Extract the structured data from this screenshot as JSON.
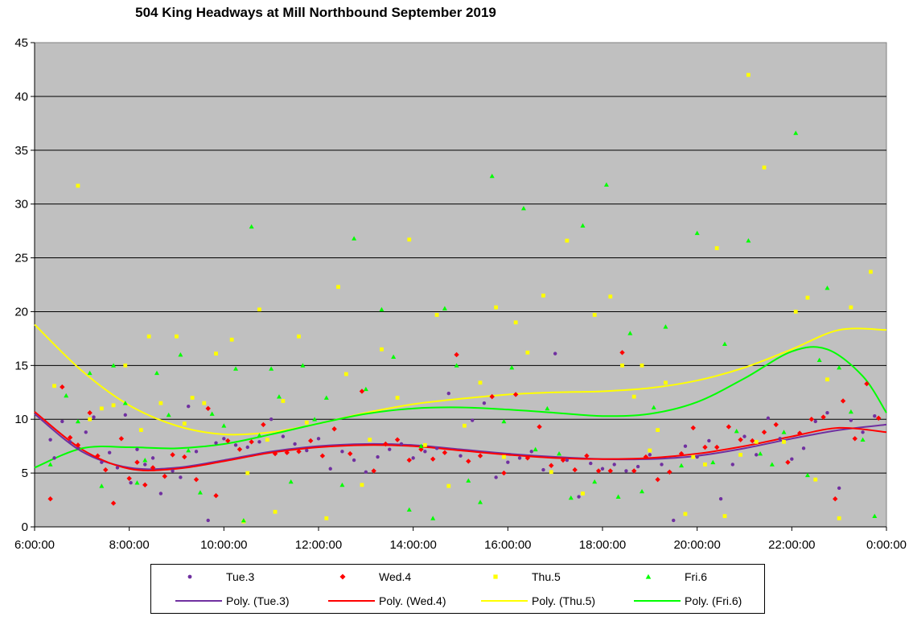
{
  "chart_data": {
    "type": "scatter",
    "title": "504 King Headways at Mill Northbound September 2019",
    "xlabel": "",
    "ylabel": "",
    "xlim": [
      "6:00:00",
      "0:00:00"
    ],
    "ylim": [
      0,
      45
    ],
    "x_ticks": [
      "6:00:00",
      "8:00:00",
      "10:00:00",
      "12:00:00",
      "14:00:00",
      "16:00:00",
      "18:00:00",
      "20:00:00",
      "22:00:00",
      "0:00:00"
    ],
    "y_ticks": [
      "0",
      "5",
      "10",
      "15",
      "20",
      "25",
      "30",
      "35",
      "40",
      "45"
    ],
    "grid": "horizontal",
    "plot_background": "#c0c0c0",
    "legend_position": "bottom",
    "series": [
      {
        "name": "Tue.3",
        "marker": "circle",
        "color": "#7030a0",
        "x": [
          "6:20",
          "6:25",
          "6:35",
          "6:45",
          "6:55",
          "7:05",
          "7:15",
          "7:25",
          "7:35",
          "7:45",
          "7:55",
          "8:02",
          "8:10",
          "8:20",
          "8:30",
          "8:40",
          "8:55",
          "9:05",
          "9:15",
          "9:25",
          "9:40",
          "9:50",
          "10:00",
          "10:15",
          "10:30",
          "10:45",
          "11:00",
          "11:15",
          "11:30",
          "11:45",
          "12:00",
          "12:15",
          "12:30",
          "12:45",
          "13:00",
          "13:15",
          "13:30",
          "13:45",
          "14:00",
          "14:15",
          "14:30",
          "14:45",
          "15:00",
          "15:15",
          "15:30",
          "15:45",
          "16:00",
          "16:15",
          "16:30",
          "16:45",
          "17:00",
          "17:15",
          "17:30",
          "17:45",
          "18:00",
          "18:15",
          "18:30",
          "18:45",
          "19:00",
          "19:15",
          "19:30",
          "19:45",
          "20:00",
          "20:15",
          "20:30",
          "20:45",
          "21:00",
          "21:15",
          "21:30",
          "21:45",
          "22:00",
          "22:15",
          "22:30",
          "22:45",
          "23:00",
          "23:15",
          "23:30",
          "23:45"
        ],
        "y": [
          8.1,
          6.4,
          9.8,
          7.9,
          7.3,
          8.8,
          10.2,
          6.0,
          6.9,
          5.5,
          10.4,
          4.1,
          7.2,
          5.8,
          6.4,
          3.1,
          5.2,
          4.6,
          11.2,
          7.0,
          0.6,
          7.8,
          8.2,
          7.6,
          7.4,
          7.9,
          10.0,
          8.4,
          7.7,
          7.1,
          8.2,
          5.4,
          7.0,
          6.2,
          5.1,
          6.5,
          7.2,
          7.7,
          6.4,
          7.0,
          7.3,
          12.4,
          6.6,
          9.9,
          11.5,
          4.6,
          6.0,
          6.4,
          7.0,
          5.3,
          16.1,
          6.2,
          2.8,
          5.9,
          5.4,
          5.8,
          5.2,
          5.6,
          6.7,
          5.8,
          0.6,
          7.5,
          6.5,
          8.0,
          2.6,
          5.8,
          8.4,
          6.7,
          10.1,
          8.2,
          6.3,
          7.3,
          9.8,
          10.6,
          3.6,
          9.9,
          8.8,
          10.3
        ]
      },
      {
        "name": "Wed.4",
        "marker": "diamond",
        "color": "#ff0000",
        "x": [
          "6:20",
          "6:35",
          "6:45",
          "6:55",
          "7:10",
          "7:20",
          "7:30",
          "7:40",
          "7:50",
          "8:00",
          "8:10",
          "8:20",
          "8:30",
          "8:45",
          "8:55",
          "9:10",
          "9:25",
          "9:40",
          "9:50",
          "10:05",
          "10:20",
          "10:35",
          "10:50",
          "11:05",
          "11:20",
          "11:35",
          "11:50",
          "12:05",
          "12:20",
          "12:40",
          "12:55",
          "13:10",
          "13:25",
          "13:40",
          "13:55",
          "14:10",
          "14:25",
          "14:40",
          "14:55",
          "15:10",
          "15:25",
          "15:40",
          "15:55",
          "16:10",
          "16:25",
          "16:40",
          "16:55",
          "17:10",
          "17:25",
          "17:40",
          "17:55",
          "18:10",
          "18:25",
          "18:40",
          "18:55",
          "19:10",
          "19:25",
          "19:40",
          "19:55",
          "20:10",
          "20:25",
          "20:40",
          "20:55",
          "21:10",
          "21:25",
          "21:40",
          "21:55",
          "22:10",
          "22:25",
          "22:40",
          "22:55",
          "23:05",
          "23:20",
          "23:35",
          "23:50"
        ],
        "y": [
          2.6,
          13.0,
          8.3,
          7.6,
          10.6,
          6.6,
          5.3,
          2.2,
          8.2,
          4.5,
          6.0,
          3.9,
          5.5,
          4.7,
          6.7,
          6.5,
          4.4,
          11.0,
          2.9,
          8.0,
          7.2,
          7.9,
          9.5,
          6.8,
          6.9,
          7.0,
          8.0,
          6.6,
          9.1,
          6.8,
          12.6,
          5.2,
          7.7,
          8.1,
          6.2,
          7.2,
          6.3,
          6.9,
          16.0,
          6.1,
          6.6,
          12.1,
          5.0,
          12.3,
          6.4,
          9.3,
          5.7,
          6.2,
          5.3,
          6.6,
          5.2,
          5.2,
          16.2,
          5.2,
          6.5,
          4.4,
          5.1,
          6.8,
          9.2,
          7.4,
          7.4,
          9.3,
          8.1,
          8.0,
          8.8,
          9.5,
          6.0,
          8.7,
          10.0,
          10.2,
          2.6,
          11.7,
          8.2,
          13.3,
          10.1
        ]
      },
      {
        "name": "Thu.5",
        "marker": "square",
        "color": "#ffff00",
        "x": [
          "6:25",
          "6:55",
          "7:10",
          "7:25",
          "7:40",
          "7:55",
          "8:15",
          "8:25",
          "8:40",
          "9:00",
          "9:10",
          "9:20",
          "9:35",
          "9:50",
          "10:10",
          "10:25",
          "10:30",
          "10:45",
          "10:55",
          "11:05",
          "11:15",
          "11:35",
          "11:45",
          "12:10",
          "12:25",
          "12:35",
          "12:55",
          "13:05",
          "13:20",
          "13:40",
          "13:55",
          "14:15",
          "14:30",
          "14:45",
          "15:05",
          "15:25",
          "15:45",
          "15:55",
          "16:10",
          "16:25",
          "16:45",
          "16:55",
          "17:15",
          "17:35",
          "17:50",
          "18:10",
          "18:25",
          "18:40",
          "18:50",
          "19:00",
          "19:10",
          "19:20",
          "19:45",
          "19:55",
          "20:10",
          "20:25",
          "20:35",
          "20:55",
          "21:05",
          "21:15",
          "21:25",
          "21:50",
          "22:05",
          "22:20",
          "22:30",
          "22:45",
          "23:00",
          "23:15",
          "23:40"
        ],
        "y": [
          13.1,
          31.7,
          10.0,
          11.0,
          11.3,
          15.0,
          9.0,
          17.7,
          11.5,
          17.7,
          9.6,
          12.0,
          11.5,
          16.1,
          17.4,
          0.5,
          5.0,
          20.2,
          8.1,
          1.4,
          11.7,
          17.7,
          9.7,
          0.8,
          22.3,
          14.2,
          3.9,
          8.1,
          16.5,
          12.0,
          26.7,
          7.6,
          19.7,
          3.8,
          9.4,
          13.4,
          20.4,
          6.5,
          19.0,
          16.2,
          21.5,
          5.1,
          26.6,
          3.1,
          19.7,
          21.4,
          15.0,
          12.1,
          15.0,
          7.1,
          9.0,
          13.4,
          1.2,
          6.5,
          5.8,
          25.9,
          1.0,
          6.7,
          42.0,
          7.9,
          33.4,
          7.9,
          20.0,
          21.3,
          4.4,
          13.7,
          0.8,
          20.4,
          23.7
        ]
      },
      {
        "name": "Fri.6",
        "marker": "triangle",
        "color": "#00ff00",
        "x": [
          "6:20",
          "6:40",
          "6:55",
          "7:10",
          "7:25",
          "7:40",
          "7:55",
          "8:10",
          "8:20",
          "8:35",
          "8:50",
          "9:05",
          "9:15",
          "9:30",
          "9:45",
          "10:00",
          "10:15",
          "10:25",
          "10:35",
          "10:45",
          "11:00",
          "11:10",
          "11:25",
          "11:40",
          "11:55",
          "12:10",
          "12:30",
          "12:45",
          "13:00",
          "13:20",
          "13:35",
          "13:55",
          "14:10",
          "14:25",
          "14:40",
          "14:55",
          "15:10",
          "15:25",
          "15:40",
          "15:55",
          "16:05",
          "16:20",
          "16:35",
          "16:50",
          "17:05",
          "17:20",
          "17:35",
          "17:50",
          "18:05",
          "18:20",
          "18:35",
          "18:50",
          "19:05",
          "19:20",
          "19:40",
          "20:00",
          "20:20",
          "20:35",
          "20:50",
          "21:05",
          "21:20",
          "21:35",
          "21:50",
          "22:05",
          "22:20",
          "22:35",
          "22:45",
          "23:00",
          "23:15",
          "23:30",
          "23:45"
        ],
        "y": [
          5.8,
          12.2,
          9.8,
          14.3,
          3.8,
          15.0,
          11.5,
          4.1,
          6.2,
          14.3,
          10.4,
          16.0,
          7.1,
          3.2,
          10.5,
          9.4,
          14.7,
          0.6,
          27.9,
          8.5,
          14.7,
          12.1,
          4.2,
          15.0,
          10.0,
          12.0,
          3.9,
          26.8,
          12.8,
          20.2,
          15.8,
          1.6,
          7.5,
          0.8,
          20.3,
          15.0,
          4.3,
          2.3,
          32.6,
          9.8,
          14.8,
          29.6,
          7.2,
          11.0,
          6.8,
          2.7,
          28.0,
          4.2,
          31.8,
          2.8,
          18.0,
          3.3,
          11.1,
          18.6,
          5.7,
          27.3,
          6.0,
          17.0,
          8.9,
          26.6,
          6.8,
          5.8,
          8.8,
          36.6,
          4.8,
          15.5,
          22.2,
          14.8,
          10.7,
          8.1,
          1.0
        ]
      }
    ],
    "trendlines": [
      {
        "name": "Poly. (Tue.3)",
        "color": "#7030a0",
        "x": [
          "6:00",
          "7:00",
          "8:00",
          "9:00",
          "10:00",
          "11:00",
          "12:00",
          "13:00",
          "14:00",
          "15:00",
          "16:00",
          "17:00",
          "18:00",
          "19:00",
          "20:00",
          "21:00",
          "22:00",
          "23:00",
          "0:00"
        ],
        "y": [
          10.5,
          7.0,
          5.5,
          5.5,
          6.2,
          7.0,
          7.5,
          7.7,
          7.6,
          7.2,
          6.8,
          6.5,
          6.3,
          6.3,
          6.6,
          7.3,
          8.2,
          9.0,
          9.5
        ]
      },
      {
        "name": "Poly. (Wed.4)",
        "color": "#ff0000",
        "x": [
          "6:00",
          "7:00",
          "8:00",
          "9:00",
          "10:00",
          "11:00",
          "12:00",
          "13:00",
          "14:00",
          "15:00",
          "16:00",
          "17:00",
          "18:00",
          "19:00",
          "20:00",
          "21:00",
          "22:00",
          "23:00",
          "0:00"
        ],
        "y": [
          10.7,
          7.2,
          5.4,
          5.4,
          6.1,
          6.9,
          7.4,
          7.6,
          7.5,
          7.1,
          6.7,
          6.4,
          6.3,
          6.4,
          6.8,
          7.5,
          8.4,
          9.2,
          8.8
        ]
      },
      {
        "name": "Poly. (Thu.5)",
        "color": "#ffff00",
        "x": [
          "6:00",
          "7:00",
          "8:00",
          "9:00",
          "10:00",
          "11:00",
          "12:00",
          "13:00",
          "14:00",
          "15:00",
          "16:00",
          "17:00",
          "18:00",
          "19:00",
          "20:00",
          "21:00",
          "22:00",
          "23:00",
          "0:00"
        ],
        "y": [
          18.8,
          14.5,
          11.3,
          9.4,
          8.6,
          8.8,
          9.6,
          10.6,
          11.4,
          11.9,
          12.3,
          12.5,
          12.6,
          12.9,
          13.6,
          14.8,
          16.5,
          18.3,
          18.3
        ]
      },
      {
        "name": "Poly. (Fri.6)",
        "color": "#00ff00",
        "x": [
          "6:00",
          "7:00",
          "8:00",
          "9:00",
          "10:00",
          "11:00",
          "12:00",
          "13:00",
          "14:00",
          "15:00",
          "16:00",
          "17:00",
          "18:00",
          "19:00",
          "20:00",
          "21:00",
          "22:00",
          "22:45",
          "23:30",
          "0:00"
        ],
        "y": [
          5.5,
          7.3,
          7.4,
          7.3,
          7.7,
          8.6,
          9.6,
          10.5,
          11.0,
          11.1,
          10.9,
          10.6,
          10.3,
          10.5,
          11.6,
          13.8,
          16.3,
          16.5,
          14.0,
          10.6
        ]
      }
    ]
  }
}
